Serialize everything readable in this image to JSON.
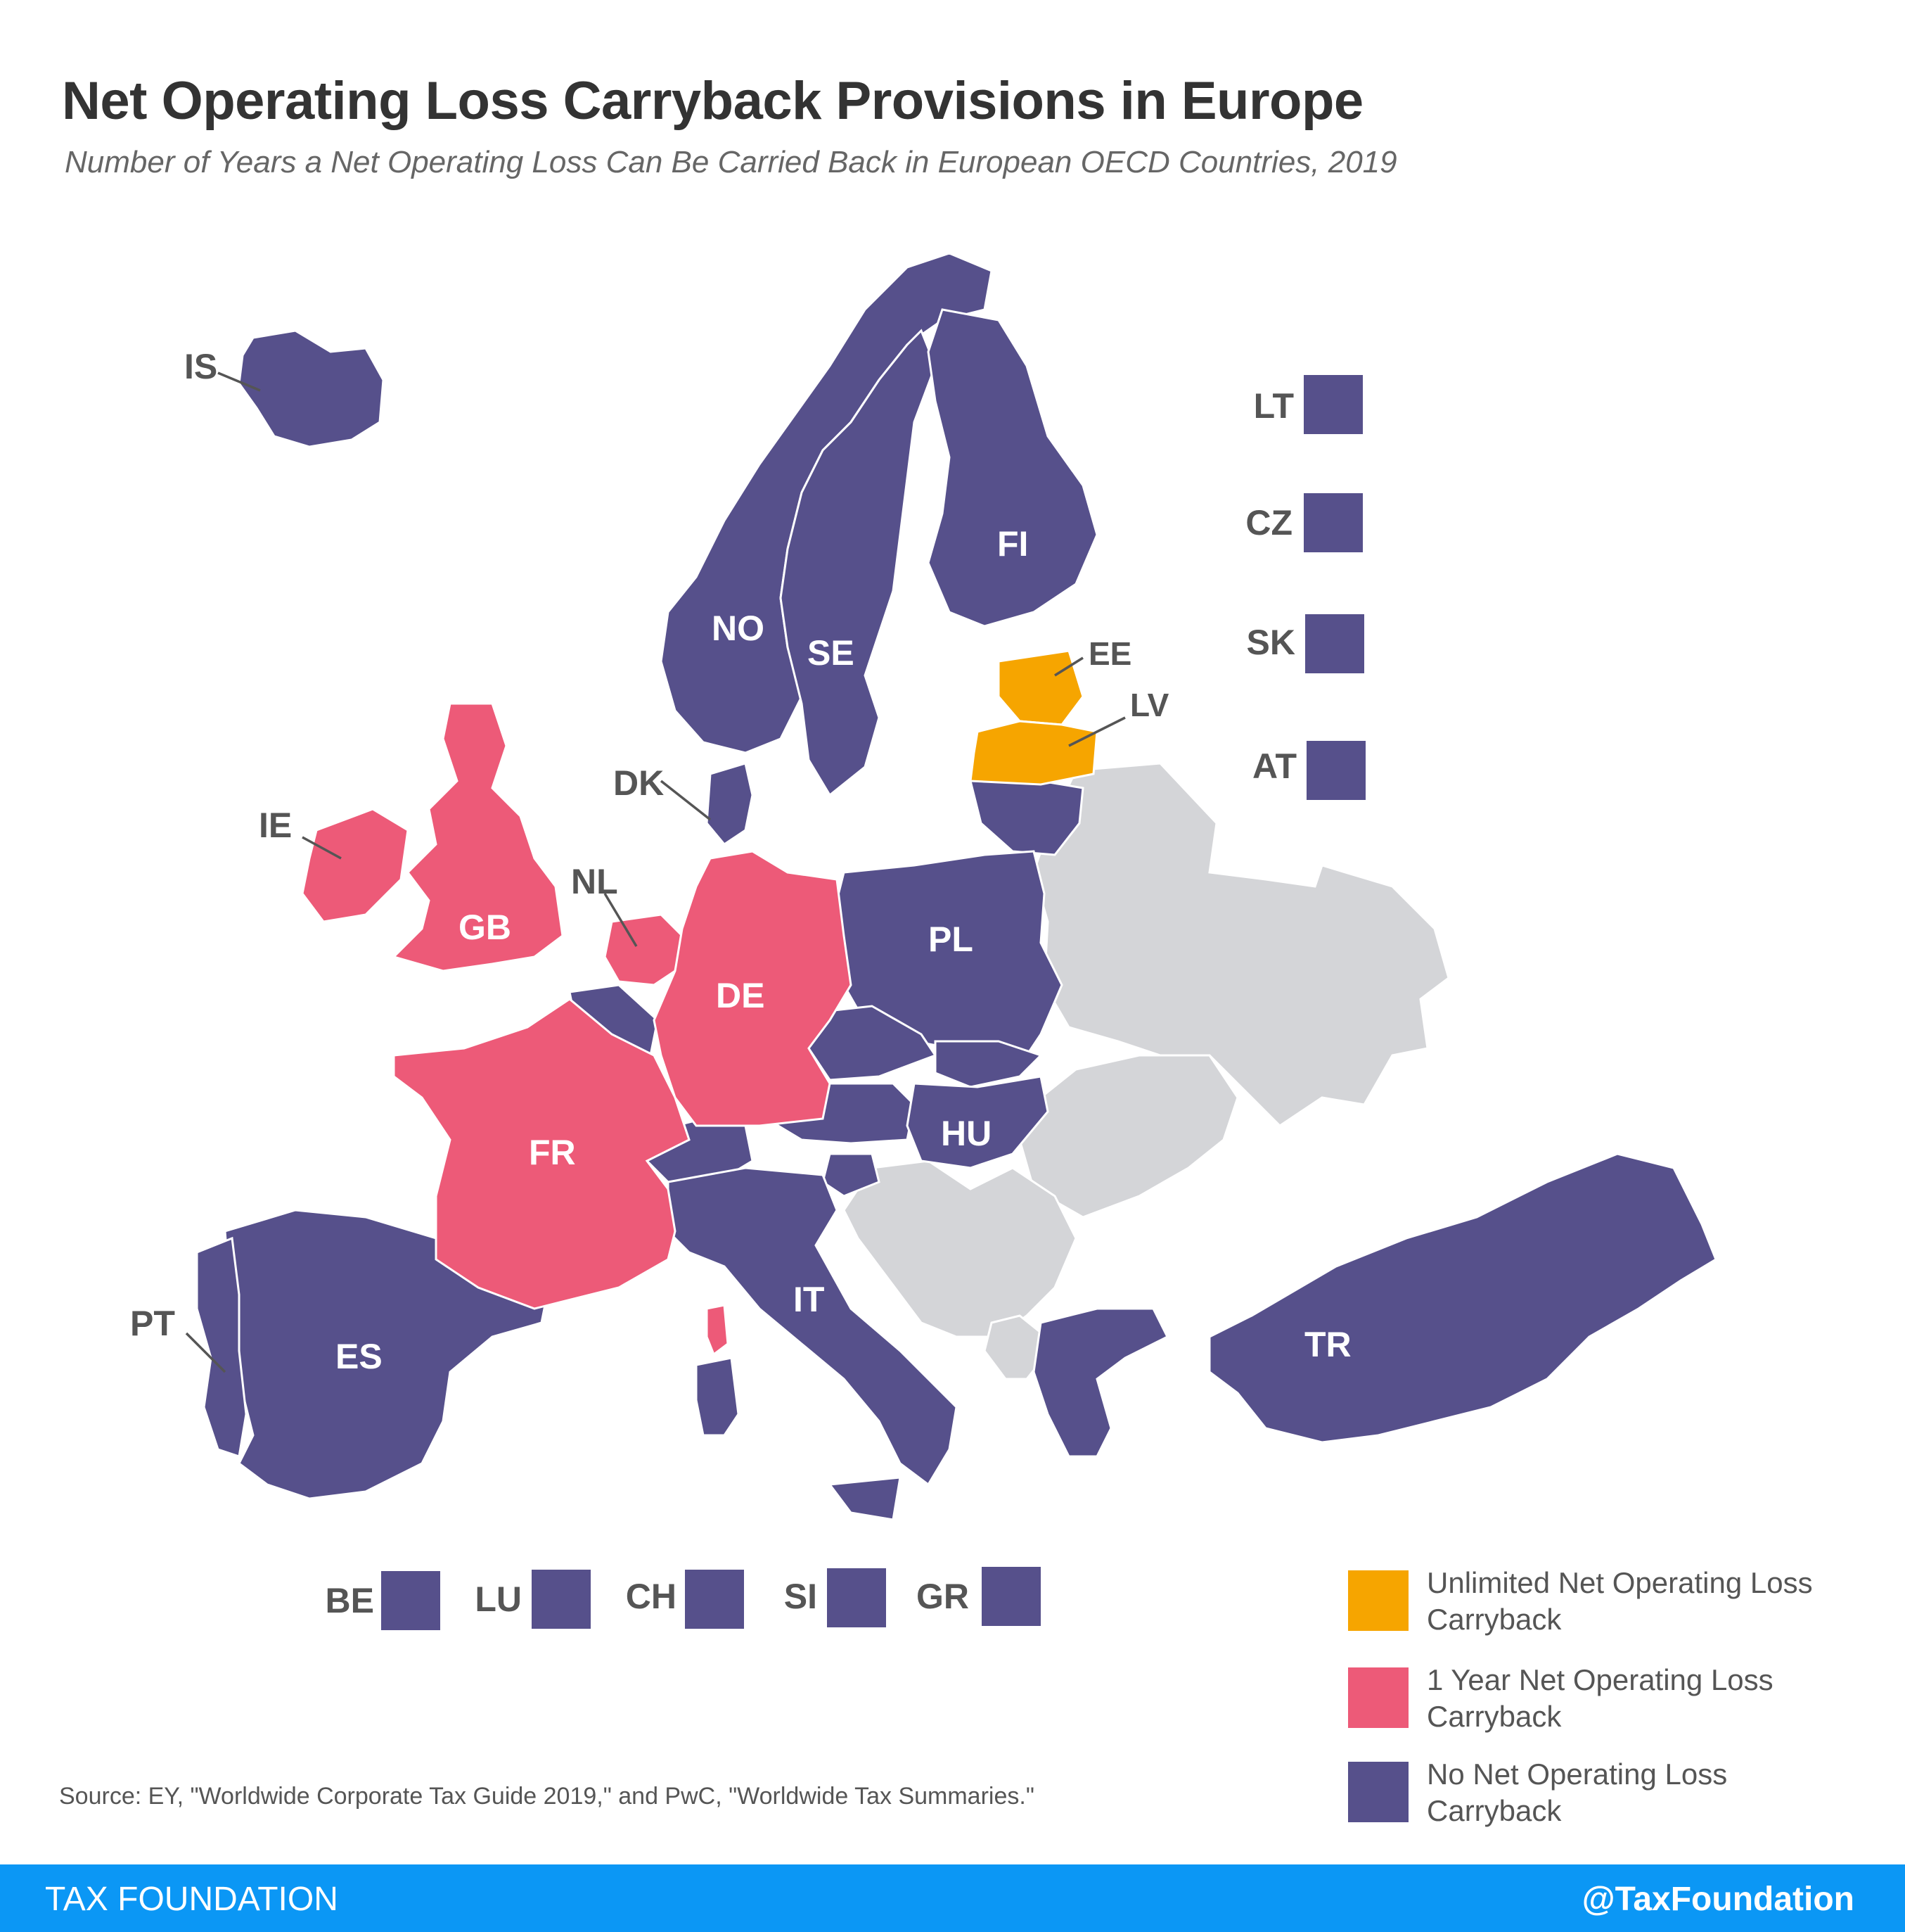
{
  "header": {
    "title": "Net Operating Loss Carryback Provisions in Europe",
    "subtitle": "Number of Years a Net Operating Loss Can Be Carried Back in European OECD Countries, 2019"
  },
  "colors": {
    "unlimited": "#f6a500",
    "one_year": "#ed5a78",
    "none": "#56508b",
    "non_oecd": "#d4d5d8",
    "footer": "#0b97f5"
  },
  "map_labels": {
    "IS": "IS",
    "NO": "NO",
    "SE": "SE",
    "FI": "FI",
    "EE": "EE",
    "LV": "LV",
    "DK": "DK",
    "IE": "IE",
    "GB": "GB",
    "NL": "NL",
    "DE": "DE",
    "PL": "PL",
    "FR": "FR",
    "HU": "HU",
    "IT": "IT",
    "ES": "ES",
    "PT": "PT",
    "TR": "TR"
  },
  "small_country_squares": {
    "right_column": [
      "LT",
      "CZ",
      "SK",
      "AT"
    ],
    "bottom_row": [
      "BE",
      "LU",
      "CH",
      "SI",
      "GR"
    ]
  },
  "legend": {
    "unlimited": "Unlimited Net Operating Loss Carryback",
    "one_year": "1 Year Net Operating Loss Carryback",
    "none": "No Net Operating Loss Carryback"
  },
  "source": "Source: EY, \"Worldwide Corporate Tax Guide 2019,\" and PwC, \"Worldwide Tax Summaries.\"",
  "footer": {
    "brand": "TAX FOUNDATION",
    "handle": "@TaxFoundation"
  }
}
